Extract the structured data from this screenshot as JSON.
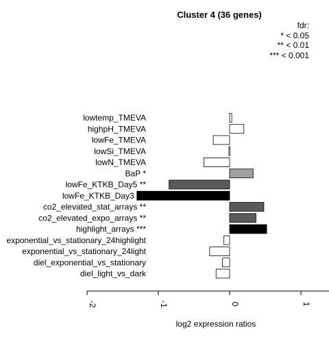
{
  "chart_data": {
    "type": "bar",
    "orientation": "horizontal",
    "title": "Cluster 4 (36 genes)",
    "xlabel": "log2 expression ratios",
    "ylabel": "",
    "xlim": [
      -2,
      2
    ],
    "xticks": [
      "-2",
      "-1",
      "0",
      "1",
      "2"
    ],
    "grid": false,
    "legend": {
      "placement": "top-right",
      "entries": [
        "fdr:",
        "* < 0.05",
        "** < 0.01",
        "*** < 0.001"
      ]
    },
    "categories": [
      "lowtemp_TMEVA",
      "highpH_TMEVA",
      "lowFe_TMEVA",
      "lowSi_TMEVA",
      "lowN_TMEVA",
      "BaP *",
      "lowFe_KTKB_Day5 **",
      "lowFe_KTKB_Day3 ***",
      "co2_elevated_stat_arrays **",
      "co2_elevated_expo_arrays **",
      "highlight_arrays ***",
      "exponential_vs_stationary_24highlight",
      "exponential_vs_stationary_24light",
      "diel_exponential_vs_stationary",
      "diel_light_vs_dark"
    ],
    "values": [
      0.03,
      0.2,
      -0.23,
      -0.01,
      -0.36,
      0.33,
      -0.85,
      -1.3,
      0.48,
      0.37,
      0.52,
      -0.08,
      -0.28,
      -0.1,
      -0.19
    ],
    "colors": [
      "#ffffff",
      "#ffffff",
      "#ffffff",
      "#ffffff",
      "#ffffff",
      "#a0a0a0",
      "#5a5a5a",
      "#000000",
      "#5a5a5a",
      "#5a5a5a",
      "#000000",
      "#ffffff",
      "#ffffff",
      "#ffffff",
      "#ffffff"
    ]
  }
}
